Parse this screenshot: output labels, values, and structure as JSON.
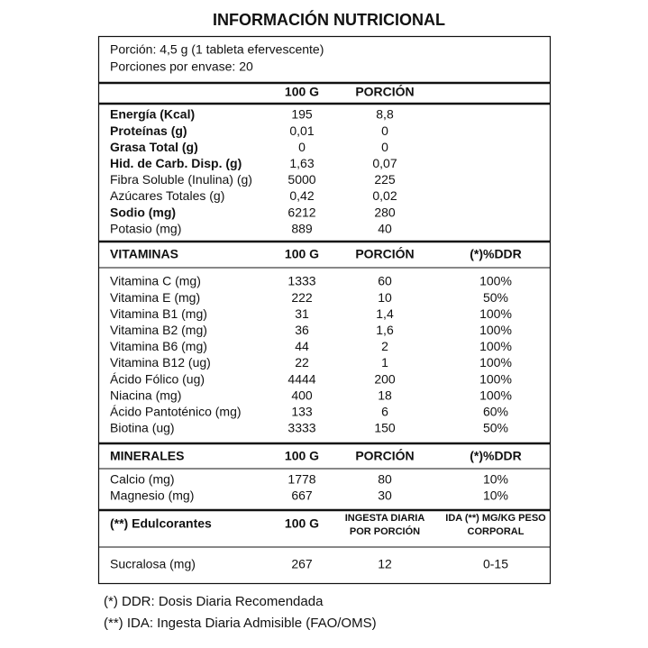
{
  "title": "INFORMACIÓN NUTRICIONAL",
  "serving": [
    "Porción: 4,5 g (1 tableta efervescente)",
    "Porciones por envase: 20"
  ],
  "sections": [
    {
      "header": [
        "100 G",
        "PORCIÓN"
      ],
      "rows": [
        [
          "Energía (Kcal)",
          "195",
          "8,8"
        ],
        [
          "Proteínas (g)",
          "0,01",
          "0"
        ],
        [
          "Grasa Total (g)",
          "0",
          "0"
        ],
        [
          "Hid. de Carb. Disp. (g)",
          "1,63",
          "0,07"
        ],
        [
          "Fibra Soluble (Inulina) (g)",
          "5000",
          "225"
        ],
        [
          "Azúcares Totales (g)",
          "0,42",
          "0,02"
        ],
        [
          "Sodio (mg)",
          "6212",
          "280"
        ],
        [
          "Potasio (mg)",
          "889",
          "40"
        ]
      ]
    },
    {
      "header": [
        "VITAMINAS",
        "100 G",
        "PORCIÓN",
        "(*)%DDR"
      ],
      "rows": [
        [
          "Vitamina C (mg)",
          "1333",
          "60",
          "100%"
        ],
        [
          "Vitamina E (mg)",
          "222",
          "10",
          "50%"
        ],
        [
          "Vitamina B1 (mg)",
          "31",
          "1,4",
          "100%"
        ],
        [
          "Vitamina B2 (mg)",
          "36",
          "1,6",
          "100%"
        ],
        [
          "Vitamina B6 (mg)",
          "44",
          "2",
          "100%"
        ],
        [
          "Vitamina B12 (ug)",
          "22",
          "1",
          "100%"
        ],
        [
          "Ácido Fólico (ug)",
          "4444",
          "200",
          "100%"
        ],
        [
          "Niacina (mg)",
          "400",
          "18",
          "100%"
        ],
        [
          "Ácido Pantoténico (mg)",
          "133",
          "6",
          "60%"
        ],
        [
          "Biotina (ug)",
          "3333",
          "150",
          "50%"
        ]
      ]
    },
    {
      "header": [
        "MINERALES",
        "100 G",
        "PORCIÓN",
        "(*)%DDR"
      ],
      "rows": [
        [
          "Calcio (mg)",
          "1778",
          "80",
          "10%"
        ],
        [
          "Magnesio (mg)",
          "667",
          "30",
          "10%"
        ]
      ]
    },
    {
      "header": [
        "(**) Edulcorantes",
        "100 G",
        [
          "INGESTA DIARIA",
          "POR PORCIÓN"
        ],
        [
          "IDA (**) MG/KG PESO",
          "CORPORAL"
        ]
      ],
      "rows": [
        [
          "Sucralosa (mg)",
          "267",
          "12",
          "0-15"
        ]
      ]
    }
  ],
  "footnotes": [
    "(*) DDR: Dosis Diaria Recomendada",
    "(**) IDA: Ingesta Diaria Admisible (FAO/OMS)"
  ]
}
